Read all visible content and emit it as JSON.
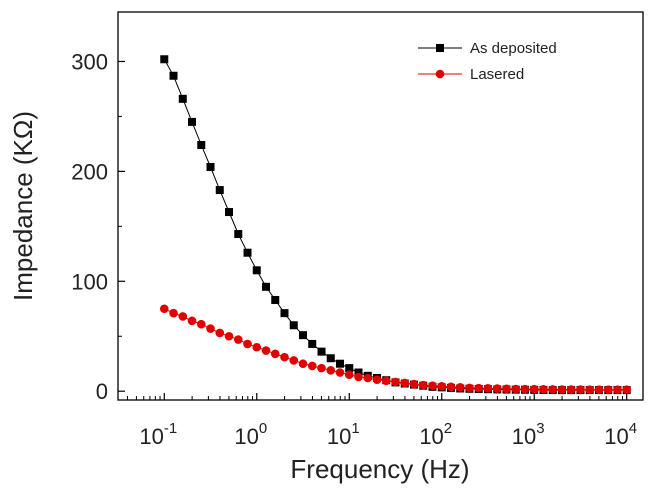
{
  "chart_data": {
    "type": "scatter",
    "x_scale": "log",
    "xlabel": "Frequency (Hz)",
    "ylabel": "Impedance (KΩ)",
    "xlim": [
      0.0316,
      15000
    ],
    "ylim": [
      -8,
      345
    ],
    "x_tick_labels": [
      {
        "base": "10",
        "exp": "-1",
        "value": 0.1
      },
      {
        "base": "10",
        "exp": "0",
        "value": 1
      },
      {
        "base": "10",
        "exp": "1",
        "value": 10
      },
      {
        "base": "10",
        "exp": "2",
        "value": 100
      },
      {
        "base": "10",
        "exp": "3",
        "value": 1000
      },
      {
        "base": "10",
        "exp": "4",
        "value": 10000
      }
    ],
    "y_ticks": [
      0,
      100,
      200,
      300
    ],
    "y_tick_labels": [
      "0",
      "100",
      "200",
      "300"
    ],
    "grid": false,
    "legend_position": "top-right",
    "series": [
      {
        "name": "As deposited",
        "color": "#000000",
        "marker": "square",
        "x": [
          0.1,
          0.1259,
          0.1585,
          0.1995,
          0.2512,
          0.3162,
          0.3981,
          0.5012,
          0.631,
          0.7943,
          1,
          1.259,
          1.585,
          1.995,
          2.512,
          3.162,
          3.981,
          5.012,
          6.31,
          7.943,
          10,
          12.59,
          15.85,
          19.95,
          25.12,
          31.62,
          39.81,
          50.12,
          63.1,
          79.43,
          100,
          125.9,
          158.5,
          199.5,
          251.2,
          316.2,
          398.1,
          501.2,
          631,
          794.3,
          1000,
          1259,
          1585,
          1995,
          2512,
          3162,
          3981,
          5012,
          6310,
          7943,
          10000
        ],
        "y": [
          302,
          287,
          266,
          245,
          224,
          204,
          183,
          163,
          143,
          126,
          110,
          95,
          83,
          71,
          60,
          51,
          43,
          36,
          30,
          25,
          21,
          17,
          14,
          12,
          10,
          8,
          7,
          6,
          5,
          4,
          3.5,
          3,
          2.5,
          2.2,
          2,
          1.8,
          1.6,
          1.5,
          1.4,
          1.3,
          1.2,
          1.1,
          1.05,
          1,
          1,
          1,
          1,
          1,
          1,
          1,
          1
        ]
      },
      {
        "name": "Lasered",
        "color": "#e00000",
        "marker": "circle",
        "x": [
          0.1,
          0.1259,
          0.1585,
          0.1995,
          0.2512,
          0.3162,
          0.3981,
          0.5012,
          0.631,
          0.7943,
          1,
          1.259,
          1.585,
          1.995,
          2.512,
          3.162,
          3.981,
          5.012,
          6.31,
          7.943,
          10,
          12.59,
          15.85,
          19.95,
          25.12,
          31.62,
          39.81,
          50.12,
          63.1,
          79.43,
          100,
          125.9,
          158.5,
          199.5,
          251.2,
          316.2,
          398.1,
          501.2,
          631,
          794.3,
          1000,
          1259,
          1585,
          1995,
          2512,
          3162,
          3981,
          5012,
          6310,
          7943,
          10000
        ],
        "y": [
          75,
          71,
          68,
          64,
          61,
          57,
          53,
          50,
          47,
          43,
          40,
          37,
          34,
          31,
          28,
          25,
          23,
          21,
          19,
          17,
          15,
          13,
          12,
          10.5,
          9.5,
          8.5,
          7.5,
          6.5,
          5.5,
          5,
          4.5,
          4,
          3.5,
          3,
          2.8,
          2.6,
          2.4,
          2.2,
          2,
          1.9,
          1.8,
          1.7,
          1.6,
          1.5,
          1.5,
          1.5,
          1.4,
          1.4,
          1.4,
          1.4,
          1.4
        ]
      }
    ]
  }
}
